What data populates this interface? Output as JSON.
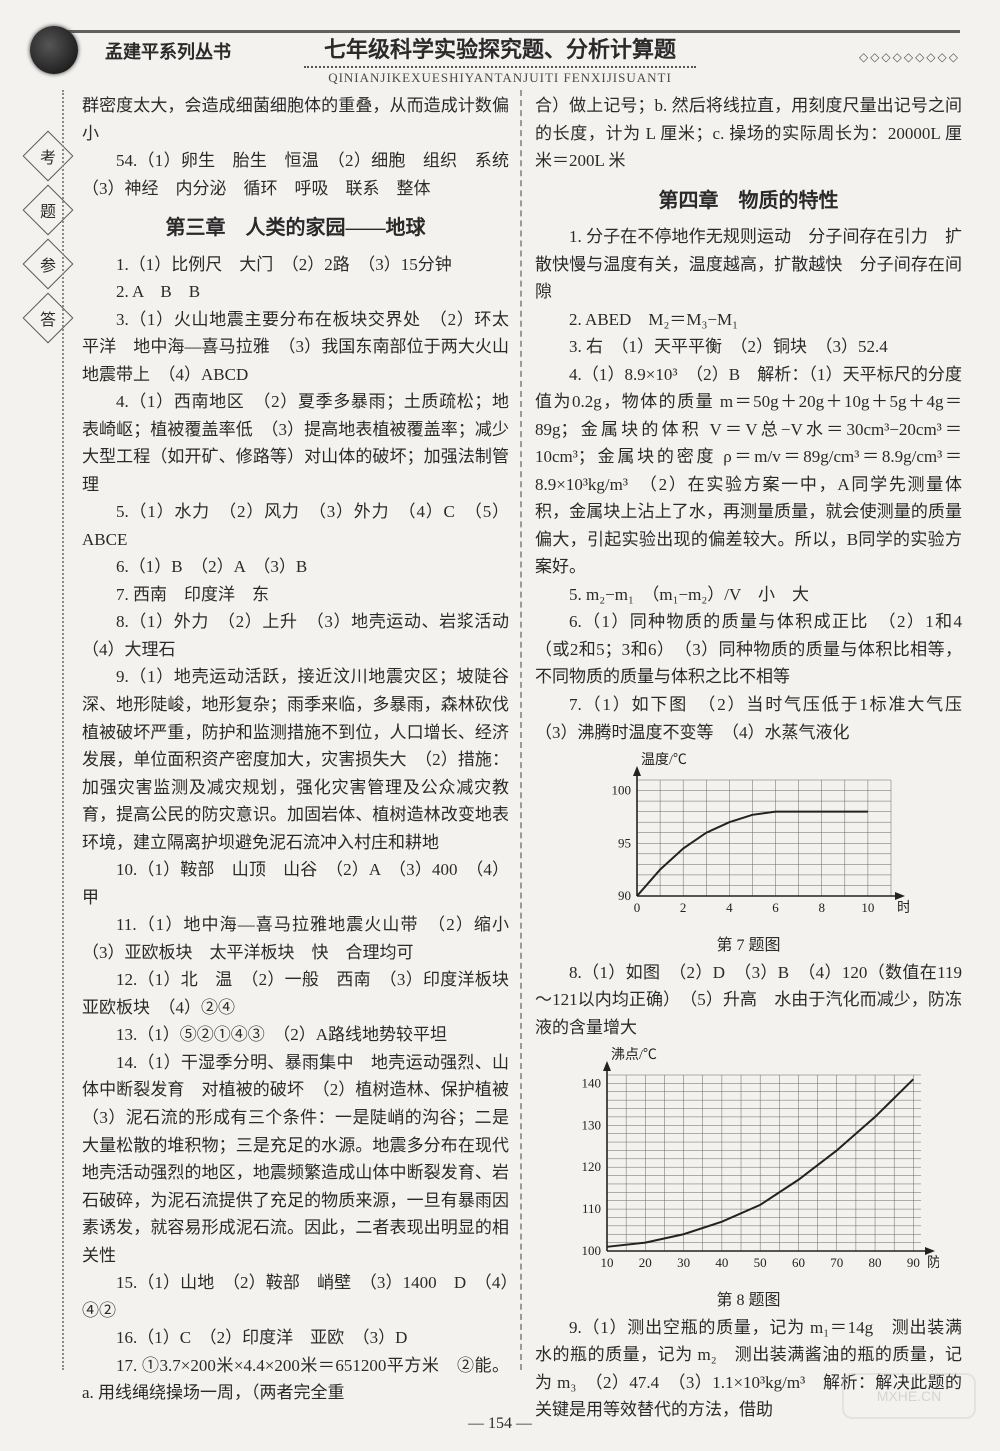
{
  "header": {
    "series": "孟建平系列丛书",
    "title": "七年级科学实验探究题、分析计算题",
    "pinyin": "QINIANJIKEXUESHIYANTANJUITI FENXIJISUANTI",
    "corner_dots": "◇◇◇◇◇◇◇◇◇"
  },
  "side": [
    "考",
    "题",
    "参",
    "答"
  ],
  "page_number": "— 154 —",
  "watermark": "MXHE.CN",
  "left": {
    "p0": "群密度太大，会造成细菌细胞体的重叠，从而造成计数偏小",
    "p54": "54.（1）卵生　胎生　恒温　（2）细胞　组织　系统　（3）神经　内分泌　循环　呼吸　联系　整体",
    "h3_ch3": "第三章　人类的家园——地球",
    "p1": "1.（1）比例尺　大门　（2）2路　（3）15分钟",
    "p2": "2. A　B　B",
    "p3": "3.（1）火山地震主要分布在板块交界处　（2）环太平洋　地中海—喜马拉雅　（3）我国东南部位于两大火山地震带上　（4）ABCD",
    "p4": "4.（1）西南地区　（2）夏季多暴雨；土质疏松；地表崎岖；植被覆盖率低　（3）提高地表植被覆盖率；减少大型工程（如开矿、修路等）对山体的破坏；加强法制管理",
    "p5": "5.（1）水力　（2）风力　（3）外力　（4）C　（5）ABCE",
    "p6": "6.（1）B　（2）A　（3）B",
    "p7": "7. 西南　印度洋　东",
    "p8": "8.（1）外力　（2）上升　（3）地壳运动、岩浆活动　（4）大理石",
    "p9": "9.（1）地壳运动活跃，接近汶川地震灾区；坡陡谷深、地形陡峻，地形复杂；雨季来临，多暴雨，森林砍伐植被破坏严重，防护和监测措施不到位，人口增长、经济发展，单位面积资产密度加大，灾害损失大　（2）措施：加强灾害监测及减灾规划，强化灾害管理及公众减灾教育，提高公民的防灾意识。加固岩体、植树造林改变地表环境，建立隔离护坝避免泥石流冲入村庄和耕地",
    "p10": "10.（1）鞍部　山顶　山谷　（2）A　（3）400　（4）甲",
    "p11": "11.（1）地中海—喜马拉雅地震火山带　（2）缩小　（3）亚欧板块　太平洋板块　快　合理均可",
    "p12": "12.（1）北　温　（2）一般　西南　（3）印度洋板块　亚欧板块　（4）②④",
    "p13": "13.（1）⑤②①④③　（2）A路线地势较平坦",
    "p14": "14.（1）干湿季分明、暴雨集中　地壳运动强烈、山体中断裂发育　对植被的破坏　（2）植树造林、保护植被　（3）泥石流的形成有三个条件：一是陡峭的沟谷；二是大量松散的堆积物；三是充足的水源。地震多分布在现代地壳活动强烈的地区，地震频繁造成山体中断裂发育、岩石破碎，为泥石流提供了充足的物质来源，一旦有暴雨因素诱发，就容易形成泥石流。因此，二者表现出明显的相关性",
    "p15": "15.（1）山地　（2）鞍部　峭壁　（3）1400　D　（4）④②",
    "p16": "16.（1）C　（2）印度洋　亚欧　（3）D",
    "p17": "17. ①3.7×200米×4.4×200米＝651200平方米　②能。a. 用线绳绕操场一周，（两者完全重"
  },
  "right": {
    "p17b": "合）做上记号；b. 然后将线拉直，用刻度尺量出记号之间的长度，计为 L 厘米；c. 操场的实际周长为：20000L 厘米＝200L 米",
    "h3_ch4": "第四章　物质的特性",
    "p1": "1. 分子在不停地作无规则运动　分子间存在引力　扩散快慢与温度有关，温度越高，扩散越快　分子间存在间隙",
    "p2": "2. ABED　M₂＝M₃−M₁",
    "p3": "3. 右　（1）天平平衡　（2）铜块　（3）52.4",
    "p4": "4.（1）8.9×10³　（2）B　解析：（1）天平标尺的分度值为0.2g，物体的质量 m＝50g＋20g＋10g＋5g＋4g＝89g；金属块的体积 V＝V总−V水＝30cm³−20cm³＝10cm³；金属块的密度 ρ＝m/v＝89g/cm³＝8.9g/cm³＝8.9×10³kg/m³　（2）在实验方案一中，A同学先测量体积，金属块上沾上了水，再测量质量，就会使测量的质量偏大，引起实验出现的偏差较大。所以，B同学的实验方案好。",
    "p5": "5. m₂−m₁　（m₁−m₂）/V　小　大",
    "p6": "6.（1）同种物质的质量与体积成正比　（2）1和4（或2和5；3和6）　（3）同种物质的质量与体积比相等，不同物质的质量与体积之比不相等",
    "p7": "7.（1）如下图　（2）当时气压低于1标准大气压　（3）沸腾时温度不变等　（4）水蒸气液化",
    "p8": "8.（1）如图　（2）D　（3）B　（4）120（数值在119～121以内均正确）　（5）升高　水由于汽化而减少，防冻液的含量增大",
    "p9": "9.（1）测出空瓶的质量，记为 m₁＝14g　测出装满水的瓶的质量，记为 m₂　测出装满酱油的瓶的质量，记为 m₃　（2）47.4　（3）1.1×10³kg/m³　解析：解决此题的关键是用等效替代的方法，借助"
  },
  "chart7": {
    "type": "line",
    "title": "第 7 题图",
    "xlabel": "时间/min",
    "ylabel": "温度/℃",
    "xlim": [
      0,
      11
    ],
    "ylim": [
      90,
      101
    ],
    "x_ticks": [
      0,
      2,
      4,
      6,
      8,
      10
    ],
    "y_ticks": [
      90,
      95,
      100
    ],
    "background": "#f4f2ef",
    "grid_color": "#666666",
    "axis_color": "#222222",
    "series": [
      {
        "color": "#222222",
        "line_width": 2,
        "xs": [
          0,
          1,
          2,
          3,
          4,
          5,
          6,
          7,
          8,
          9,
          10
        ],
        "ys": [
          90,
          92.5,
          94.5,
          96,
          97,
          97.7,
          98,
          98,
          98,
          98,
          98
        ]
      }
    ]
  },
  "chart8": {
    "type": "line",
    "title": "第 8 题图",
    "xlabel": "防冻液含量/%",
    "ylabel": "沸点/℃",
    "xlim": [
      10,
      92
    ],
    "ylim": [
      100,
      142
    ],
    "x_ticks": [
      10,
      20,
      30,
      40,
      50,
      60,
      70,
      80,
      90
    ],
    "y_ticks": [
      100,
      110,
      120,
      130,
      140
    ],
    "background": "#f4f2ef",
    "grid_color": "#666666",
    "axis_color": "#222222",
    "series": [
      {
        "color": "#222222",
        "line_width": 2,
        "xs": [
          10,
          20,
          30,
          40,
          50,
          60,
          70,
          80,
          90
        ],
        "ys": [
          101,
          102,
          104,
          107,
          111,
          117,
          124,
          132,
          141
        ]
      }
    ]
  }
}
